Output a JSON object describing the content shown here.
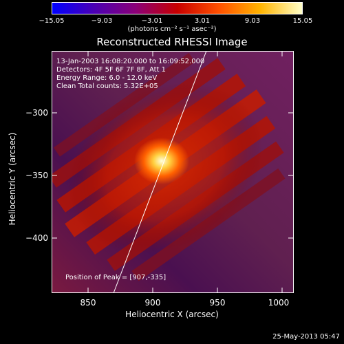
{
  "colorbar": {
    "ticks": [
      "−15.05",
      "−9.03",
      "−3.01",
      "3.01",
      "9.03",
      "15.05"
    ],
    "units": "(photons cm⁻² s⁻¹ asec⁻²)",
    "colors": [
      "#0000ff",
      "#4b00b4",
      "#8a0078",
      "#c80000",
      "#ff5000",
      "#ffb400",
      "#ffffc8"
    ]
  },
  "title": "Reconstructed RHESSI Image",
  "info": {
    "time": "13-Jan-2003 16:08:20.000 to 16:09:52.000",
    "detectors": "Detectors: 4F 5F 6F 7F 8F, Att 1",
    "energy": "Energy Range: 6.0 - 12.0 keV",
    "clean": "Clean     Total counts: 5.32E+05",
    "peak": "Position of Peak = [907,-335]"
  },
  "axes": {
    "xlabel": "Heliocentric X (arcsec)",
    "ylabel": "Heliocentric Y (arcsec)",
    "xticks": [
      "850",
      "900",
      "950",
      "1000"
    ],
    "yticks": [
      "−300",
      "−350",
      "−400"
    ]
  },
  "timestamp": "25-May-2013 05:47"
}
